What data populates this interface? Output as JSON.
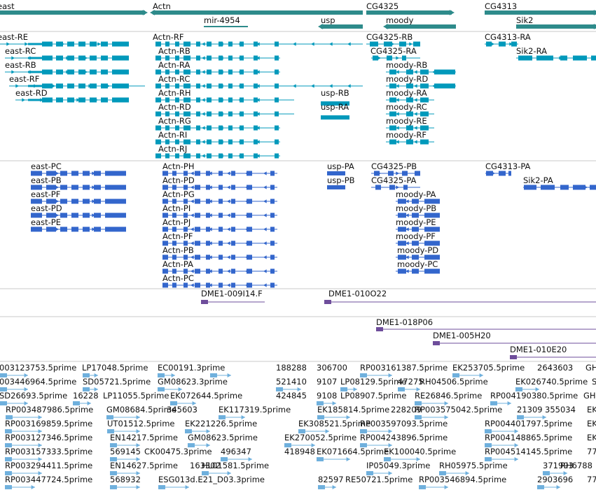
{
  "colors": {
    "gene": "#2e8b8b",
    "transcript": "#0099bb",
    "protein": "#3366cc",
    "clone": "#6e4d9b",
    "est": "#6fb0dd",
    "divider": "#c8c8c8"
  },
  "genes": [
    {
      "label": "east"
    },
    {
      "label": "Actn"
    },
    {
      "label": "mir-4954"
    },
    {
      "label": "usp"
    },
    {
      "label": "CG4325"
    },
    {
      "label": "moody"
    },
    {
      "label": "CG4313"
    },
    {
      "label": "Sik2"
    }
  ],
  "transcripts": [
    {
      "label": "east-RE"
    },
    {
      "label": "east-RC"
    },
    {
      "label": "east-RB"
    },
    {
      "label": "east-RF"
    },
    {
      "label": "east-RD"
    },
    {
      "label": "Actn-RF"
    },
    {
      "label": "Actn-RB"
    },
    {
      "label": "Actn-RA"
    },
    {
      "label": "Actn-RC"
    },
    {
      "label": "Actn-RH"
    },
    {
      "label": "Actn-RD"
    },
    {
      "label": "Actn-RG"
    },
    {
      "label": "Actn-RI"
    },
    {
      "label": "Actn-RJ"
    },
    {
      "label": "usp-RB"
    },
    {
      "label": "usp-RA"
    },
    {
      "label": "CG4325-RB"
    },
    {
      "label": "CG4325-RA"
    },
    {
      "label": "moody-RB"
    },
    {
      "label": "moody-RD"
    },
    {
      "label": "moody-RA"
    },
    {
      "label": "moody-RC"
    },
    {
      "label": "moody-RE"
    },
    {
      "label": "moody-RF"
    },
    {
      "label": "CG4313-RA"
    },
    {
      "label": "Sik2-RA"
    }
  ],
  "proteins": [
    {
      "label": "east-PC"
    },
    {
      "label": "east-PB"
    },
    {
      "label": "east-PF"
    },
    {
      "label": "east-PD"
    },
    {
      "label": "east-PE"
    },
    {
      "label": "Actn-PH"
    },
    {
      "label": "Actn-PD"
    },
    {
      "label": "Actn-PG"
    },
    {
      "label": "Actn-PI"
    },
    {
      "label": "Actn-PJ"
    },
    {
      "label": "Actn-PF"
    },
    {
      "label": "Actn-PB"
    },
    {
      "label": "Actn-PA"
    },
    {
      "label": "Actn-PC"
    },
    {
      "label": "usp-PA"
    },
    {
      "label": "usp-PB"
    },
    {
      "label": "CG4325-PB"
    },
    {
      "label": "CG4325-PA"
    },
    {
      "label": "moody-PA"
    },
    {
      "label": "moody-PB"
    },
    {
      "label": "moody-PE"
    },
    {
      "label": "moody-PF"
    },
    {
      "label": "moody-PD"
    },
    {
      "label": "moody-PC"
    },
    {
      "label": "CG4313-PA"
    },
    {
      "label": "Sik2-PA"
    }
  ],
  "clones": [
    {
      "label": "DME1-009I14.F"
    },
    {
      "label": "DME1-010O22"
    },
    {
      "label": "DME1-018P06"
    },
    {
      "label": "DME1-005H20"
    },
    {
      "label": "DME1-010E20"
    }
  ],
  "ests": [
    "003123753.5prime",
    "LP17048.5prime",
    "EC00191.3prime",
    "188288",
    "306700",
    "RP003161387.5prime",
    "EK253705.5prime",
    "2643603",
    "GH0",
    "003446964.5prime",
    "SD05721.5prime",
    "GM08623.3prime",
    "521410",
    "9107",
    "LP08129.5prime",
    "47275",
    "RH04506.5prime",
    "EK026740.5prime",
    "S",
    "SD26693.5prime",
    "16228",
    "LP11055.5prime",
    "EK072644.5prime",
    "424845",
    "9108",
    "LP08907.5prime",
    "RE26846.5prime",
    "RP004190380.5prime",
    "GH0",
    "RP003487986.5prime",
    "GM08684.5prime",
    "345603",
    "EK117319.5prime",
    "EK185814.5prime",
    "228209",
    "RP003575042.5prime",
    "21309",
    "355034",
    "EK",
    "RP003169859.5prime",
    "UT01512.5prime",
    "EK221226.5prime",
    "EK308521.5prime",
    "RP003597093.5prime",
    "RP004401797.5prime",
    "EK",
    "RP003127346.5prime",
    "EN14217.5prime",
    "GM08623.5prime",
    "EK270052.5prime",
    "RP004243896.5prime",
    "RP004148865.5prime",
    "EK",
    "RP003157333.5prime",
    "569145",
    "CK00475.3prime",
    "496347",
    "418948",
    "EK071664.5prime",
    "EK100040.5prime",
    "RP004514145.5prime",
    "77",
    "RP003294411.5prime",
    "EN14627.5prime",
    "163302",
    "HL01581.5prime",
    "IP05049.3prime",
    "RH05975.5prime",
    "371993",
    "RH6788",
    "RP003447724.5prime",
    "568932",
    "ESG013d.E21_D03.3prime",
    "82597",
    "RE50721.5prime",
    "RP003546894.5prime",
    "2903696",
    "77"
  ]
}
